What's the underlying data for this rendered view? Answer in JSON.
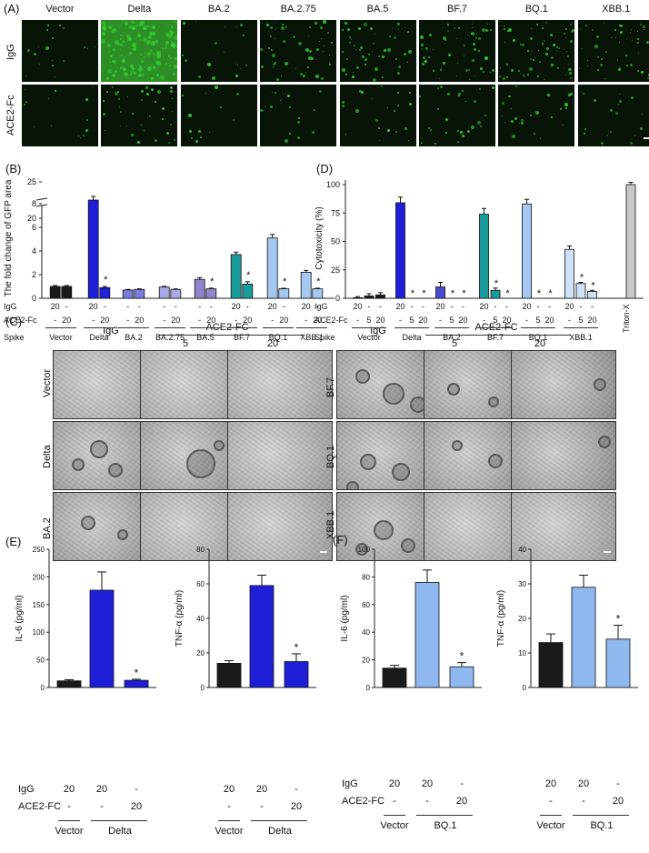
{
  "panel_labels": {
    "A": "(A)",
    "B": "(B)",
    "C": "(C)",
    "D": "(D)",
    "E": "(E)",
    "F": "(F)"
  },
  "panelA": {
    "columns": [
      "Vector",
      "Delta",
      "BA.2",
      "BA.2.75",
      "BA.5",
      "BF.7",
      "BQ.1",
      "XBB.1"
    ],
    "rows": [
      "IgG",
      "ACE2-Fc"
    ],
    "green": "#33cc33"
  },
  "chart_data": [
    {
      "id": "B",
      "type": "bar",
      "ylabel": "The fold change of GFP area",
      "ylim": [
        0,
        25
      ],
      "axis_break": [
        8,
        20
      ],
      "yticks_lower": [
        "0",
        "2",
        "4",
        "6",
        "8"
      ],
      "yticks_upper": [
        "20",
        "25"
      ],
      "row_labels": {
        "igg": "IgG",
        "ace": "ACE2-Fc",
        "spike": "Spike"
      },
      "groups": [
        {
          "name": "Vector",
          "color": "#1a1a1a",
          "bars": [
            {
              "v": 1.0,
              "e": 0.08,
              "igg": "20",
              "ace": "-"
            },
            {
              "v": 1.0,
              "e": 0.08,
              "igg": "-",
              "ace": "20"
            }
          ]
        },
        {
          "name": "Delta",
          "color": "#1f1fd8",
          "bars": [
            {
              "v": 22.5,
              "e": 0.5,
              "igg": "20",
              "ace": "-"
            },
            {
              "v": 0.9,
              "e": 0.1,
              "igg": "-",
              "ace": "20",
              "star": "*"
            }
          ]
        },
        {
          "name": "BA.2",
          "color": "#7c7cdb",
          "bars": [
            {
              "v": 0.7,
              "e": 0.05,
              "igg": "-",
              "ace": "-"
            },
            {
              "v": 0.75,
              "e": 0.05,
              "igg": "-",
              "ace": "20"
            }
          ]
        },
        {
          "name": "BA.2.75",
          "color": "#a9a9e6",
          "bars": [
            {
              "v": 0.95,
              "e": 0.06,
              "igg": "-",
              "ace": "-"
            },
            {
              "v": 0.75,
              "e": 0.05,
              "igg": "-",
              "ace": "20"
            }
          ]
        },
        {
          "name": "BA.5",
          "color": "#8d86cc",
          "bars": [
            {
              "v": 1.6,
              "e": 0.15,
              "igg": "-",
              "ace": "-"
            },
            {
              "v": 0.8,
              "e": 0.06,
              "igg": "-",
              "ace": "20",
              "star": "*"
            }
          ]
        },
        {
          "name": "BF.7",
          "color": "#1a9c9c",
          "bars": [
            {
              "v": 3.7,
              "e": 0.2,
              "igg": "20",
              "ace": "-"
            },
            {
              "v": 1.2,
              "e": 0.2,
              "igg": "-",
              "ace": "20",
              "star": "*"
            }
          ]
        },
        {
          "name": "BQ.1",
          "color": "#a4c8f2",
          "bars": [
            {
              "v": 5.1,
              "e": 0.3,
              "igg": "20",
              "ace": "-"
            },
            {
              "v": 0.8,
              "e": 0.05,
              "igg": "-",
              "ace": "20",
              "star": "*"
            }
          ]
        },
        {
          "name": "XBB.1",
          "color": "#a4c8f2",
          "bars": [
            {
              "v": 2.2,
              "e": 0.15,
              "igg": "20",
              "ace": "-"
            },
            {
              "v": 0.8,
              "e": 0.05,
              "igg": "-",
              "ace": "20",
              "star": "*"
            }
          ]
        }
      ]
    },
    {
      "id": "D",
      "type": "bar",
      "ylabel": "Cytotoxicity (%)",
      "ylim": [
        0,
        100
      ],
      "yticks": [
        "0",
        "25",
        "50",
        "75",
        "100"
      ],
      "row_labels": {
        "igg": "IgG",
        "ace": "ACE2-Fc",
        "spike": "Spike"
      },
      "groups": [
        {
          "name": "Vector",
          "color": "#1a1a1a",
          "bars": [
            {
              "v": 0.5,
              "e": 1,
              "igg": "20",
              "ace": "-"
            },
            {
              "v": 2,
              "e": 2,
              "igg": "-",
              "ace": "5"
            },
            {
              "v": 3,
              "e": 2,
              "igg": "-",
              "ace": "20"
            }
          ]
        },
        {
          "name": "Delta",
          "color": "#1f1fd8",
          "bars": [
            {
              "v": 84,
              "e": 5,
              "igg": "20",
              "ace": "-"
            },
            {
              "v": 0,
              "e": 0,
              "igg": "-",
              "ace": "5",
              "star": "*"
            },
            {
              "v": 0,
              "e": 0,
              "igg": "-",
              "ace": "20",
              "star": "*"
            }
          ]
        },
        {
          "name": "BA.2",
          "color": "#4a4ad0",
          "bars": [
            {
              "v": 10,
              "e": 4,
              "igg": "20",
              "ace": "-"
            },
            {
              "v": 0,
              "e": 0,
              "igg": "-",
              "ace": "5",
              "star": "*"
            },
            {
              "v": 0,
              "e": 0,
              "igg": "-",
              "ace": "20",
              "star": "*"
            }
          ]
        },
        {
          "name": "BF.7",
          "color": "#1a9c9c",
          "bars": [
            {
              "v": 74,
              "e": 5,
              "igg": "20",
              "ace": "-"
            },
            {
              "v": 7,
              "e": 2,
              "igg": "-",
              "ace": "5",
              "star": "*"
            },
            {
              "v": 0,
              "e": 0,
              "igg": "-",
              "ace": "20",
              "star": "*"
            }
          ]
        },
        {
          "name": "BQ.1",
          "color": "#a4c8f2",
          "bars": [
            {
              "v": 83,
              "e": 4,
              "igg": "20",
              "ace": "-"
            },
            {
              "v": 0,
              "e": 0,
              "igg": "-",
              "ace": "5",
              "star": "*"
            },
            {
              "v": 0,
              "e": 0,
              "igg": "-",
              "ace": "20",
              "star": "*"
            }
          ]
        },
        {
          "name": "XBB.1",
          "color": "#cfe1f7",
          "bars": [
            {
              "v": 43,
              "e": 3,
              "igg": "20",
              "ace": "-"
            },
            {
              "v": 13,
              "e": 1,
              "igg": "-",
              "ace": "5",
              "star": "*"
            },
            {
              "v": 6,
              "e": 1,
              "igg": "-",
              "ace": "20",
              "star": "*"
            }
          ]
        },
        {
          "name": "Triton-X",
          "color": "#c8c8c8",
          "bars": [
            {
              "v": 100,
              "e": 2,
              "igg": "",
              "ace": ""
            }
          ]
        }
      ]
    },
    {
      "id": "E-IL6",
      "type": "bar",
      "ylabel": "IL-6 (pg/ml)",
      "ylim": [
        0,
        250
      ],
      "yticks": [
        "0",
        "50",
        "100",
        "150",
        "200",
        "250"
      ],
      "bars": [
        {
          "v": 12,
          "e": 2,
          "c": "#1a1a1a"
        },
        {
          "v": 176,
          "e": 33,
          "c": "#1f1fd8"
        },
        {
          "v": 13,
          "e": 2,
          "c": "#1f1fd8",
          "star": "*"
        }
      ]
    },
    {
      "id": "E-TNF",
      "type": "bar",
      "ylabel": "TNF-α (pg/ml)",
      "ylim": [
        0,
        80
      ],
      "yticks": [
        "0",
        "20",
        "40",
        "60",
        "80"
      ],
      "bars": [
        {
          "v": 14,
          "e": 1.5,
          "c": "#1a1a1a"
        },
        {
          "v": 59,
          "e": 6,
          "c": "#1f1fd8"
        },
        {
          "v": 15,
          "e": 4.5,
          "c": "#1f1fd8",
          "star": "*"
        }
      ]
    },
    {
      "id": "F-IL6",
      "type": "bar",
      "ylabel": "IL-6 (pg/ml)",
      "ylim": [
        0,
        100
      ],
      "yticks": [
        "0",
        "20",
        "40",
        "60",
        "80",
        "100"
      ],
      "bars": [
        {
          "v": 14,
          "e": 2,
          "c": "#1a1a1a"
        },
        {
          "v": 76,
          "e": 9,
          "c": "#8fb8ee"
        },
        {
          "v": 15,
          "e": 3,
          "c": "#8fb8ee",
          "star": "*"
        }
      ]
    },
    {
      "id": "F-TNF",
      "type": "bar",
      "ylabel": "TNF-α (pg/ml)",
      "ylim": [
        0,
        40
      ],
      "yticks": [
        "0",
        "10",
        "20",
        "30",
        "40"
      ],
      "bars": [
        {
          "v": 13,
          "e": 2.5,
          "c": "#1a1a1a"
        },
        {
          "v": 29,
          "e": 3.5,
          "c": "#8fb8ee"
        },
        {
          "v": 14,
          "e": 4,
          "c": "#8fb8ee",
          "star": "*"
        }
      ]
    }
  ],
  "panelC": {
    "header_igg": "IgG",
    "header_ace": "ACE2-FC",
    "dose_5": "5",
    "dose_20": "20",
    "left_rows": [
      "Vector",
      "Delta",
      "BA.2"
    ],
    "right_rows": [
      "BF.7",
      "BQ.1",
      "XBB.1"
    ]
  },
  "panelE": {
    "igg": "IgG",
    "ace": "ACE2-FC",
    "igg_vals": [
      "20",
      "20",
      "-"
    ],
    "ace_vals": [
      "-",
      "-",
      "20"
    ],
    "group1": "Vector",
    "group2": "Delta"
  },
  "panelF": {
    "igg": "IgG",
    "ace": "ACE2-FC",
    "igg_vals": [
      "20",
      "20",
      "-"
    ],
    "ace_vals": [
      "-",
      "-",
      "20"
    ],
    "group1": "Vector",
    "group2": "BQ.1"
  }
}
